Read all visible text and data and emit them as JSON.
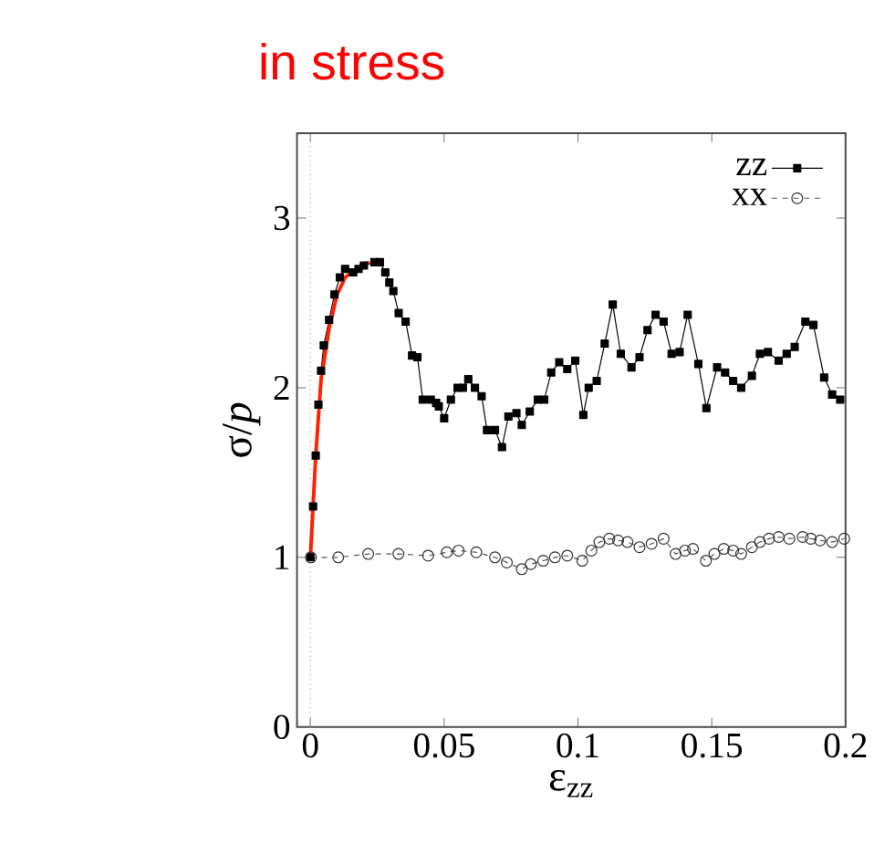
{
  "chart_data": {
    "type": "line",
    "title": "in stress",
    "xlabel": "ε$_{zz}$",
    "ylabel": "σ/*p*",
    "xlim": [
      -0.005,
      0.2
    ],
    "ylim": [
      0,
      3.5
    ],
    "xticks": [
      0,
      0.05,
      0.1,
      0.15,
      0.2
    ],
    "yticks": [
      0,
      1,
      2,
      3
    ],
    "grid": false,
    "legend": "top right",
    "ref_lines": [
      {
        "axis": "x",
        "value": 0,
        "color": "#aaaaaa",
        "line_style": "dotted"
      }
    ],
    "series": [
      {
        "name": "zz",
        "color": "#000000",
        "marker": "square",
        "line_style": "solid",
        "x": [
          0,
          0.001,
          0.002,
          0.003,
          0.004,
          0.005,
          0.007,
          0.009,
          0.011,
          0.013,
          0.016,
          0.018,
          0.02,
          0.0239,
          0.026,
          0.028,
          0.0295,
          0.031,
          0.033,
          0.0356,
          0.038,
          0.04,
          0.042,
          0.045,
          0.047,
          0.048,
          0.05,
          0.0525,
          0.055,
          0.057,
          0.059,
          0.0615,
          0.064,
          0.066,
          0.069,
          0.0716,
          0.074,
          0.077,
          0.079,
          0.082,
          0.085,
          0.0874,
          0.09,
          0.093,
          0.096,
          0.099,
          0.102,
          0.104,
          0.107,
          0.11,
          0.113,
          0.116,
          0.12,
          0.123,
          0.126,
          0.129,
          0.132,
          0.135,
          0.138,
          0.141,
          0.145,
          0.148,
          0.152,
          0.155,
          0.158,
          0.161,
          0.165,
          0.168,
          0.171,
          0.175,
          0.178,
          0.181,
          0.185,
          0.188,
          0.192,
          0.195,
          0.198
        ],
        "values": [
          1.0,
          1.3,
          1.6,
          1.9,
          2.1,
          2.25,
          2.4,
          2.55,
          2.65,
          2.7,
          2.68,
          2.7,
          2.72,
          2.74,
          2.74,
          2.68,
          2.62,
          2.57,
          2.44,
          2.39,
          2.19,
          2.18,
          1.93,
          1.93,
          1.91,
          1.89,
          1.82,
          1.93,
          2.0,
          2.0,
          2.05,
          2.0,
          1.95,
          1.75,
          1.75,
          1.65,
          1.83,
          1.85,
          1.78,
          1.86,
          1.93,
          1.93,
          2.09,
          2.15,
          2.11,
          2.16,
          1.84,
          2.0,
          2.04,
          2.26,
          2.49,
          2.2,
          2.12,
          2.18,
          2.34,
          2.43,
          2.39,
          2.2,
          2.21,
          2.43,
          2.14,
          1.88,
          2.12,
          2.09,
          2.04,
          2.0,
          2.07,
          2.2,
          2.21,
          2.16,
          2.2,
          2.24,
          2.39,
          2.37,
          2.06,
          1.96,
          1.93
        ]
      },
      {
        "name": "xx",
        "color": "#555555",
        "marker": "circle",
        "line_style": "dashed",
        "x": [
          0.0002,
          0.0104,
          0.0216,
          0.0329,
          0.044,
          0.051,
          0.0554,
          0.062,
          0.069,
          0.0734,
          0.079,
          0.0824,
          0.087,
          0.0914,
          0.096,
          0.1016,
          0.105,
          0.108,
          0.1117,
          0.115,
          0.1185,
          0.123,
          0.1275,
          0.132,
          0.1365,
          0.14,
          0.143,
          0.1478,
          0.151,
          0.1545,
          0.158,
          0.161,
          0.165,
          0.168,
          0.1714,
          0.175,
          0.179,
          0.184,
          0.187,
          0.1905,
          0.195,
          0.1995
        ],
        "values": [
          1.0,
          1.0,
          1.02,
          1.02,
          1.01,
          1.03,
          1.04,
          1.03,
          1.0,
          0.97,
          0.93,
          0.96,
          0.98,
          1.0,
          1.01,
          0.98,
          1.04,
          1.09,
          1.11,
          1.1,
          1.09,
          1.06,
          1.08,
          1.11,
          1.02,
          1.04,
          1.05,
          0.98,
          1.02,
          1.05,
          1.04,
          1.02,
          1.06,
          1.09,
          1.11,
          1.12,
          1.11,
          1.12,
          1.11,
          1.1,
          1.09,
          1.11
        ]
      },
      {
        "type": "line",
        "color": "#ff2200",
        "marker": "none",
        "line_style": "solid",
        "x": [
          0,
          0.002,
          0.004,
          0.007,
          0.01,
          0.013,
          0.017,
          0.022
        ],
        "values": [
          1.0,
          1.6,
          2.05,
          2.35,
          2.55,
          2.65,
          2.7,
          2.74
        ]
      }
    ]
  }
}
